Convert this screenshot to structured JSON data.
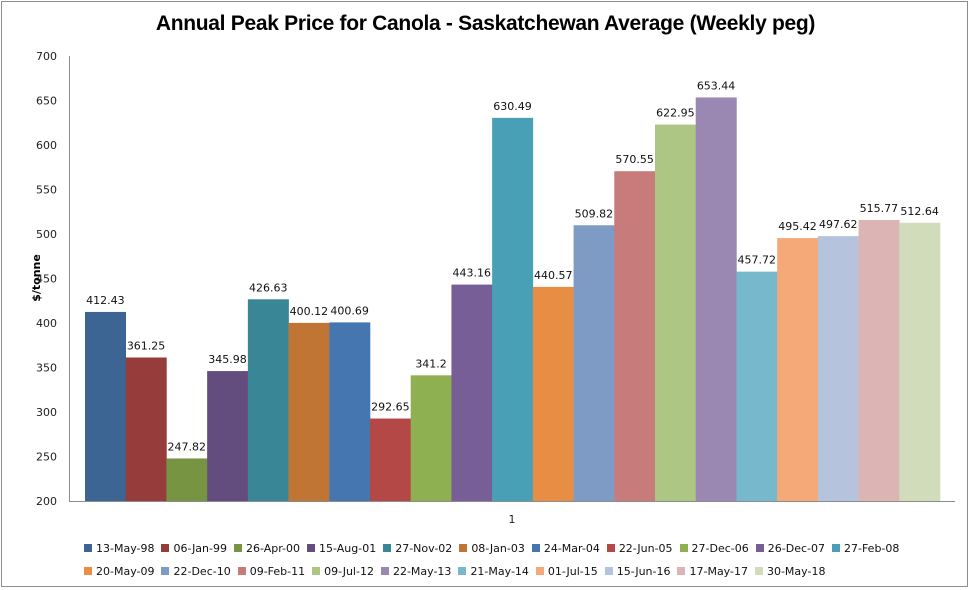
{
  "chart_data": {
    "type": "bar",
    "title": "Annual Peak Price for Canola - Saskatchewan Average (Weekly peg)",
    "xlabel": "",
    "ylabel": "$/tonne",
    "ylim": [
      200,
      700
    ],
    "yticks": [
      200,
      250,
      300,
      350,
      400,
      450,
      500,
      550,
      600,
      650,
      700
    ],
    "categories": [
      "1"
    ],
    "grid": false,
    "legend_position": "bottom",
    "series": [
      {
        "name": "13-May-98",
        "values": [
          412.43
        ],
        "label": "412.43",
        "color": "#3c6594"
      },
      {
        "name": "06-Jan-99",
        "values": [
          361.25
        ],
        "label": "361.25",
        "color": "#963c3a"
      },
      {
        "name": "26-Apr-00",
        "values": [
          247.82
        ],
        "label": "247.82",
        "color": "#779443"
      },
      {
        "name": "15-Aug-01",
        "values": [
          345.98
        ],
        "label": "345.98",
        "color": "#634d7e"
      },
      {
        "name": "27-Nov-02",
        "values": [
          426.63
        ],
        "label": "426.63",
        "color": "#388696"
      },
      {
        "name": "08-Jan-03",
        "values": [
          400.12
        ],
        "label": "400.12",
        "color": "#c17535"
      },
      {
        "name": "24-Mar-04",
        "values": [
          400.69
        ],
        "label": "400.69",
        "color": "#4676b0"
      },
      {
        "name": "22-Jun-05",
        "values": [
          292.65
        ],
        "label": "292.65",
        "color": "#b44846"
      },
      {
        "name": "27-Dec-06",
        "values": [
          341.2
        ],
        "label": "341.2",
        "color": "#8fb051"
      },
      {
        "name": "26-Dec-07",
        "values": [
          443.16
        ],
        "label": "443.16",
        "color": "#785e96"
      },
      {
        "name": "27-Feb-08",
        "values": [
          630.49
        ],
        "label": "630.49",
        "color": "#47a0b6"
      },
      {
        "name": "20-May-09",
        "values": [
          440.57
        ],
        "label": "440.57",
        "color": "#e88d44"
      },
      {
        "name": "22-Dec-10",
        "values": [
          509.82
        ],
        "label": "509.82",
        "color": "#7e9bc6"
      },
      {
        "name": "09-Feb-11",
        "values": [
          570.55
        ],
        "label": "570.55",
        "color": "#c77b7a"
      },
      {
        "name": "09-Jul-12",
        "values": [
          622.95
        ],
        "label": "622.95",
        "color": "#adc684"
      },
      {
        "name": "22-May-13",
        "values": [
          653.44
        ],
        "label": "653.44",
        "color": "#9b88b2"
      },
      {
        "name": "21-May-14",
        "values": [
          457.72
        ],
        "label": "457.72",
        "color": "#78b8cc"
      },
      {
        "name": "01-Jul-15",
        "values": [
          495.42
        ],
        "label": "495.42",
        "color": "#f5a978"
      },
      {
        "name": "15-Jun-16",
        "values": [
          497.62
        ],
        "label": "497.62",
        "color": "#b5c3dd"
      },
      {
        "name": "17-May-17",
        "values": [
          515.77
        ],
        "label": "515.77",
        "color": "#ddb4b4"
      },
      {
        "name": "30-May-18",
        "values": [
          512.64
        ],
        "label": "512.64",
        "color": "#d0dcba"
      }
    ]
  }
}
